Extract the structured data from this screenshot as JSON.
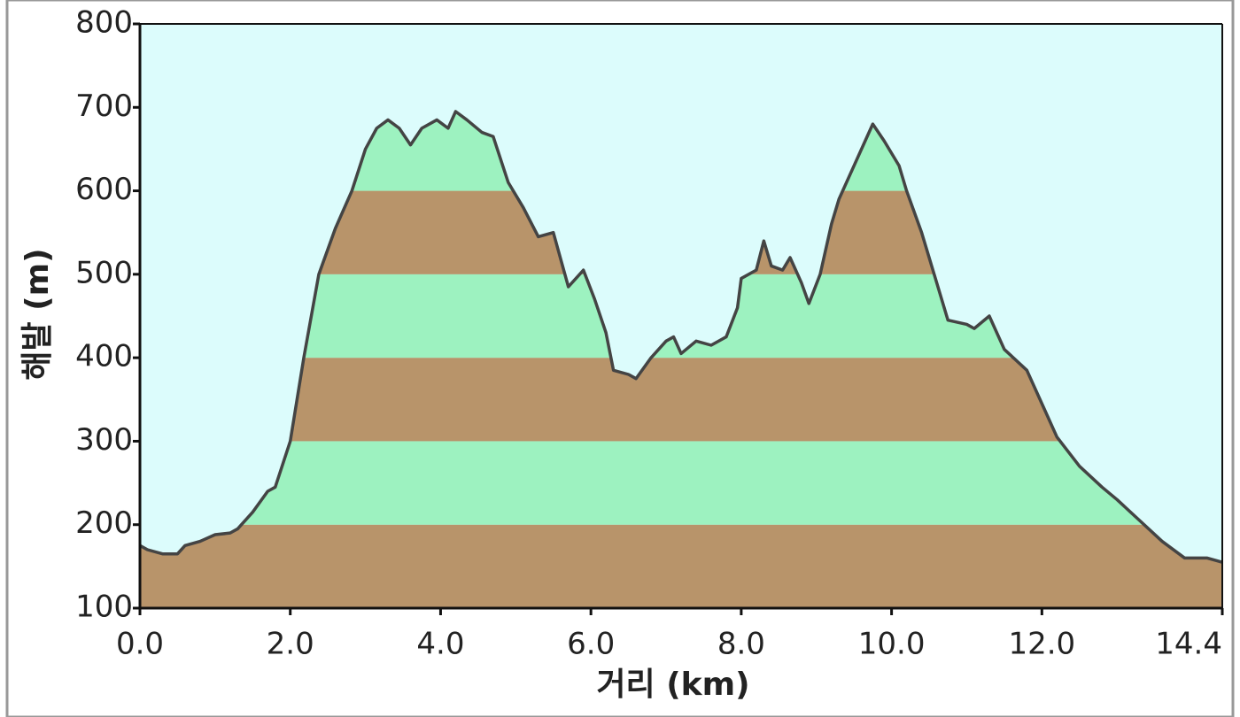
{
  "chart_data": {
    "type": "area",
    "x_label": "거리 (km)",
    "y_label": "해발 (m)",
    "x": [
      0.0,
      0.1,
      0.3,
      0.5,
      0.6,
      0.8,
      1.0,
      1.2,
      1.3,
      1.5,
      1.7,
      1.8,
      2.0,
      2.18,
      2.38,
      2.6,
      2.82,
      3.0,
      3.15,
      3.3,
      3.45,
      3.6,
      3.75,
      3.95,
      4.1,
      4.2,
      4.35,
      4.55,
      4.7,
      4.9,
      5.1,
      5.3,
      5.5,
      5.7,
      5.9,
      6.05,
      6.2,
      6.3,
      6.5,
      6.6,
      6.8,
      7.0,
      7.1,
      7.2,
      7.4,
      7.6,
      7.8,
      7.95,
      8.0,
      8.2,
      8.3,
      8.4,
      8.55,
      8.65,
      8.8,
      8.9,
      9.05,
      9.2,
      9.3,
      9.5,
      9.65,
      9.75,
      9.9,
      10.1,
      10.2,
      10.4,
      10.6,
      10.75,
      11.0,
      11.1,
      11.3,
      11.5,
      11.8,
      12.0,
      12.2,
      12.5,
      12.8,
      13.0,
      13.3,
      13.6,
      13.9,
      14.2,
      14.4
    ],
    "values": [
      175,
      170,
      165,
      165,
      175,
      180,
      188,
      190,
      195,
      215,
      240,
      245,
      300,
      400,
      500,
      555,
      600,
      650,
      675,
      685,
      675,
      655,
      675,
      685,
      675,
      695,
      685,
      670,
      665,
      610,
      580,
      545,
      550,
      485,
      505,
      470,
      430,
      385,
      380,
      375,
      400,
      420,
      425,
      405,
      420,
      415,
      425,
      460,
      495,
      505,
      540,
      510,
      505,
      520,
      490,
      465,
      500,
      560,
      590,
      630,
      660,
      680,
      660,
      630,
      600,
      550,
      490,
      445,
      440,
      435,
      450,
      410,
      385,
      345,
      305,
      270,
      245,
      230,
      205,
      180,
      160,
      160,
      155
    ],
    "xlim": [
      0,
      14.4
    ],
    "xticks": [
      {
        "value": 0,
        "label": "0.0"
      },
      {
        "value": 2,
        "label": "2.0"
      },
      {
        "value": 4,
        "label": "4.0"
      },
      {
        "value": 6,
        "label": "6.0"
      },
      {
        "value": 8,
        "label": "8.0"
      },
      {
        "value": 10,
        "label": "10.0"
      },
      {
        "value": 12,
        "label": "12.0"
      },
      14.4
    ],
    "ylim": [
      100,
      800
    ],
    "yticks": [
      100,
      200,
      300,
      400,
      500,
      600,
      700,
      800
    ],
    "background": "#dcfcfc",
    "line_color": "#444444",
    "band_colors": [
      "#b8946a",
      "#9df2c0"
    ]
  }
}
